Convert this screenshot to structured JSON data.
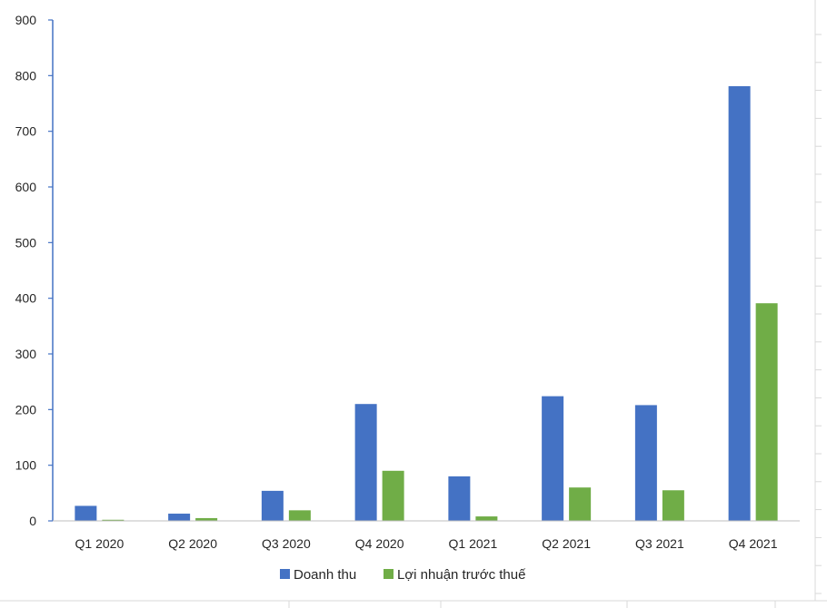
{
  "chart_data": {
    "type": "bar",
    "title": "",
    "xlabel": "",
    "ylabel": "",
    "categories": [
      "Q1 2020",
      "Q2 2020",
      "Q3 2020",
      "Q4 2020",
      "Q1 2021",
      "Q2 2021",
      "Q3 2021",
      "Q4 2021"
    ],
    "series": [
      {
        "name": "Doanh thu",
        "color": "#4472C4",
        "values": [
          27,
          13,
          54,
          210,
          80,
          224,
          208,
          781
        ]
      },
      {
        "name": "Lợi nhuận trước thuế",
        "color": "#70AD47",
        "values": [
          2,
          5,
          19,
          90,
          8,
          60,
          55,
          391
        ]
      }
    ],
    "ylim": [
      0,
      900
    ],
    "yticks": [
      0,
      100,
      200,
      300,
      400,
      500,
      600,
      700,
      800,
      900
    ],
    "grid": false,
    "legend": "bottom"
  }
}
